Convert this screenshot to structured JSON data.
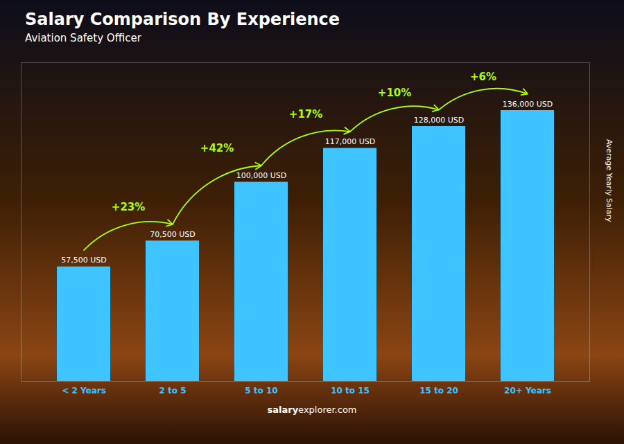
{
  "chart_data": {
    "type": "bar",
    "title": "Salary Comparison By Experience",
    "subtitle": "Aviation Safety Officer",
    "ylabel": "Average Yearly Salary",
    "categories": [
      "< 2 Years",
      "2 to 5",
      "5 to 10",
      "10 to 15",
      "15 to 20",
      "20+ Years"
    ],
    "values": [
      57500,
      70500,
      100000,
      117000,
      128000,
      136000
    ],
    "value_labels": [
      "57,500 USD",
      "70,500 USD",
      "100,000 USD",
      "117,000 USD",
      "128,000 USD",
      "136,000 USD"
    ],
    "data_labels": true,
    "color": "#40C4FF",
    "ylim": [
      0,
      160000
    ],
    "tick_labels": "x",
    "grid": false,
    "annotations": [
      {
        "text": "+23%",
        "from": "< 2 Years",
        "to": "2 to 5",
        "color": "#AAFF00"
      },
      {
        "text": "+42%",
        "from": "2 to 5",
        "to": "5 to 10",
        "color": "#AAFF00"
      },
      {
        "text": "+17%",
        "from": "5 to 10",
        "to": "10 to 15",
        "color": "#AAFF00"
      },
      {
        "text": "+10%",
        "from": "10 to 15",
        "to": "15 to 20",
        "color": "#AAFF00"
      },
      {
        "text": "+6%",
        "from": "15 to 20",
        "to": "20+ Years",
        "color": "#AAFF00"
      }
    ],
    "footer": [
      "salary",
      "explorer.com"
    ]
  }
}
